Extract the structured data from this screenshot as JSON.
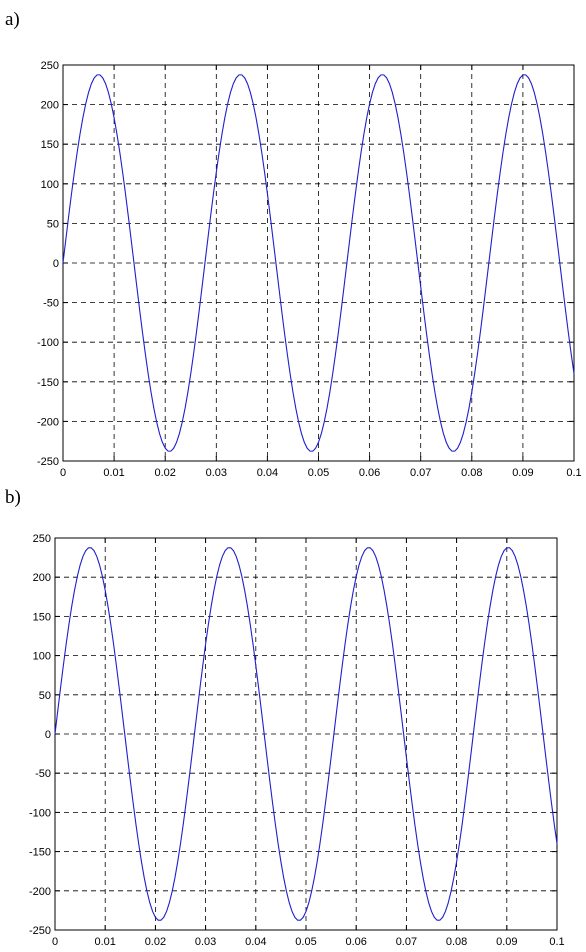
{
  "panels": [
    {
      "label": "a)",
      "chart_data": {
        "type": "line",
        "x_ticks": [
          "0",
          "0.01",
          "0.02",
          "0.03",
          "0.04",
          "0.05",
          "0.06",
          "0.07",
          "0.08",
          "0.09",
          "0.1"
        ],
        "y_ticks": [
          "250",
          "200",
          "150",
          "100",
          "50",
          "0",
          "-50",
          "-100",
          "-150",
          "-200",
          "-250"
        ],
        "xlim": [
          0,
          0.1
        ],
        "ylim": [
          -250,
          250
        ],
        "grid": true,
        "series": [
          {
            "color": "#1f1fd0",
            "amplitude": 238,
            "frequency_hz": 36,
            "x_start": 0,
            "x_end": 0.1,
            "num_points": 180
          }
        ]
      }
    },
    {
      "label": "b)",
      "chart_data": {
        "type": "line",
        "x_ticks": [
          "0",
          "0.01",
          "0.02",
          "0.03",
          "0.04",
          "0.05",
          "0.06",
          "0.07",
          "0.08",
          "0.09",
          "0.1"
        ],
        "y_ticks": [
          "250",
          "200",
          "150",
          "100",
          "50",
          "0",
          "-50",
          "-100",
          "-150",
          "-200",
          "-250"
        ],
        "xlim": [
          0,
          0.1
        ],
        "ylim": [
          -250,
          250
        ],
        "grid": true,
        "series": [
          {
            "color": "#1f1fd0",
            "amplitude": 238,
            "frequency_hz": 36,
            "x_start": 0,
            "x_end": 0.1,
            "num_points": 180
          }
        ]
      }
    }
  ]
}
